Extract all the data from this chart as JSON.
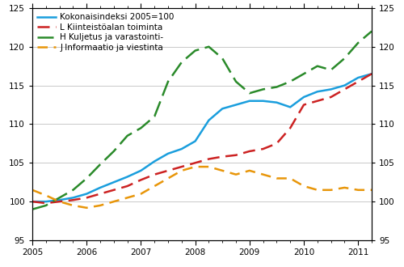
{
  "ylim": [
    95,
    125
  ],
  "yticks": [
    95,
    100,
    105,
    110,
    115,
    120,
    125
  ],
  "series": {
    "Kokonaisindeksi 2005=100": {
      "color": "#1a9edd",
      "linewidth": 1.8,
      "dashes": null,
      "values": [
        100.0,
        100.0,
        100.2,
        100.5,
        101.0,
        101.8,
        102.5,
        103.2,
        104.0,
        105.2,
        106.2,
        106.8,
        107.8,
        110.5,
        112.0,
        112.5,
        113.0,
        113.0,
        112.8,
        112.2,
        113.5,
        114.2,
        114.5,
        115.0,
        116.0,
        116.5
      ]
    },
    "L Kiinteistöalan toiminta": {
      "color": "#cc2222",
      "linewidth": 1.8,
      "dashes": [
        6,
        3
      ],
      "values": [
        100.0,
        99.8,
        100.0,
        100.2,
        100.5,
        101.0,
        101.5,
        102.0,
        102.8,
        103.5,
        104.0,
        104.5,
        105.0,
        105.5,
        105.8,
        106.0,
        106.5,
        106.8,
        107.5,
        109.5,
        112.5,
        113.0,
        113.5,
        114.5,
        115.5,
        116.5
      ]
    },
    "H Kuljetus ja varastointi-": {
      "color": "#2a8a2a",
      "linewidth": 1.8,
      "dashes": [
        8,
        3
      ],
      "values": [
        99.0,
        99.5,
        100.5,
        101.5,
        103.0,
        104.8,
        106.5,
        108.5,
        109.5,
        111.0,
        115.5,
        118.0,
        119.5,
        120.0,
        118.5,
        115.5,
        114.0,
        114.5,
        114.8,
        115.5,
        116.5,
        117.5,
        117.0,
        118.5,
        120.5,
        122.0
      ]
    },
    "J Informaatio ja viestinta": {
      "color": "#e8960a",
      "linewidth": 1.8,
      "dashes": [
        5,
        3
      ],
      "values": [
        101.5,
        100.8,
        100.0,
        99.5,
        99.2,
        99.5,
        100.0,
        100.5,
        101.0,
        102.0,
        103.0,
        104.0,
        104.5,
        104.5,
        104.0,
        103.5,
        104.0,
        103.5,
        103.0,
        103.0,
        102.0,
        101.5,
        101.5,
        101.8,
        101.5,
        101.5
      ]
    }
  },
  "legend_labels": [
    "Kokonaisindeksi 2005=100",
    "L Kiinteistöalan toiminta",
    "H Kuljetus ja varastointi-",
    "J Informaatio ja viestinta"
  ],
  "n_points": 26,
  "xticks_major_pos": [
    0,
    4,
    8,
    12,
    16,
    20,
    24
  ],
  "xticks_major_labels": [
    "2005",
    "2006",
    "2007",
    "2008",
    "2009",
    "2010",
    "2011"
  ],
  "grid_color": "#c0c0c0",
  "grid_linewidth": 0.6,
  "background_color": "#ffffff",
  "tick_fontsize": 7.5,
  "legend_fontsize": 7.5
}
